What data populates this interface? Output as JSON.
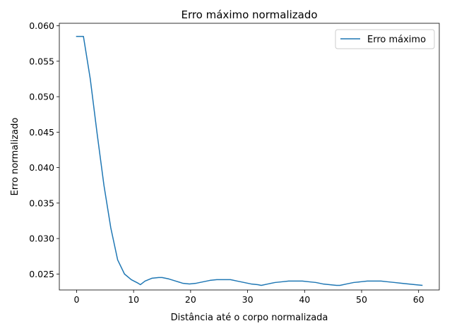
{
  "chart_data": {
    "type": "line",
    "title": "Erro máximo normalizado",
    "xlabel": "Distância até o corpo normalizada",
    "ylabel": "Erro normalizado",
    "xlim": [
      -3.03,
      63.63
    ],
    "ylim": [
      0.02275,
      0.06035
    ],
    "xticks": [
      0,
      10,
      20,
      30,
      40,
      50,
      60
    ],
    "xtick_labels": [
      "0",
      "10",
      "20",
      "30",
      "40",
      "50",
      "60"
    ],
    "yticks": [
      0.025,
      0.03,
      0.035,
      0.04,
      0.045,
      0.05,
      0.055,
      0.06
    ],
    "ytick_labels": [
      "0.025",
      "0.030",
      "0.035",
      "0.040",
      "0.045",
      "0.050",
      "0.055",
      "0.060"
    ],
    "grid": false,
    "legend_position": "top-right",
    "colors": {
      "series": "#1f77b4"
    },
    "series": [
      {
        "name": "Erro máximo",
        "x": [
          0.0,
          1.2,
          2.4,
          3.6,
          4.8,
          6.0,
          7.2,
          8.4,
          9.6,
          10.8,
          11.2,
          12.0,
          13.2,
          14.4,
          15.0,
          16.2,
          17.4,
          18.6,
          19.8,
          21.0,
          22.2,
          23.4,
          24.6,
          25.8,
          27.0,
          28.2,
          29.4,
          30.6,
          31.8,
          32.4,
          33.6,
          34.8,
          36.0,
          37.2,
          38.4,
          39.6,
          40.8,
          42.0,
          43.2,
          44.4,
          45.6,
          46.2,
          47.4,
          48.6,
          49.8,
          51.0,
          52.2,
          53.4,
          54.6,
          55.8,
          57.0,
          58.2,
          59.4,
          60.6
        ],
        "y": [
          0.0585,
          0.0585,
          0.0525,
          0.0448,
          0.0375,
          0.0315,
          0.027,
          0.025,
          0.0242,
          0.0237,
          0.0235,
          0.024,
          0.0244,
          0.0245,
          0.0245,
          0.0243,
          0.024,
          0.0237,
          0.0236,
          0.0237,
          0.0239,
          0.0241,
          0.0242,
          0.0242,
          0.0242,
          0.024,
          0.0238,
          0.0236,
          0.0235,
          0.0234,
          0.0236,
          0.0238,
          0.0239,
          0.024,
          0.024,
          0.024,
          0.0239,
          0.0238,
          0.0236,
          0.0235,
          0.0234,
          0.0234,
          0.0236,
          0.0238,
          0.0239,
          0.024,
          0.024,
          0.024,
          0.0239,
          0.0238,
          0.0237,
          0.0236,
          0.0235,
          0.0234
        ]
      }
    ]
  }
}
